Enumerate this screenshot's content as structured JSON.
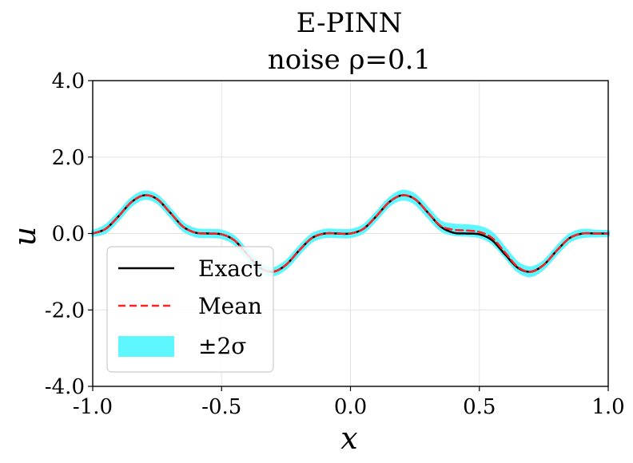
{
  "chart_data": {
    "type": "line",
    "title": "E-PINN",
    "subtitle": "noise ρ=0.1",
    "xlabel": "x",
    "ylabel": "u",
    "xlim": [
      -1.0,
      1.0
    ],
    "ylim": [
      -4.0,
      4.0
    ],
    "grid": true,
    "legend_position": "lower-left",
    "x_ticks": [
      -1.0,
      -0.5,
      0.0,
      0.5,
      1.0
    ],
    "x_tick_labels": [
      "-1.0",
      "-0.5",
      "0.0",
      "0.5",
      "1.0"
    ],
    "y_ticks": [
      -4.0,
      -2.0,
      0.0,
      2.0,
      4.0
    ],
    "y_tick_labels": [
      "-4.0",
      "-2.0",
      "0.0",
      "2.0",
      "4.0"
    ],
    "x": [
      -1.0,
      -0.95,
      -0.9,
      -0.85,
      -0.8,
      -0.75,
      -0.7,
      -0.65,
      -0.6,
      -0.55,
      -0.5,
      -0.45,
      -0.4,
      -0.35,
      -0.3,
      -0.25,
      -0.2,
      -0.15,
      -0.1,
      -0.05,
      0.0,
      0.05,
      0.1,
      0.15,
      0.2,
      0.25,
      0.3,
      0.35,
      0.4,
      0.45,
      0.5,
      0.55,
      0.6,
      0.65,
      0.7,
      0.75,
      0.8,
      0.85,
      0.9,
      0.95,
      1.0
    ],
    "series": [
      {
        "name": "Exact",
        "color": "#000000",
        "style": "solid",
        "values": [
          0.0,
          0.12,
          0.45,
          0.82,
          1.0,
          0.9,
          0.55,
          0.18,
          0.02,
          0.0,
          -0.02,
          -0.18,
          -0.55,
          -0.9,
          -1.0,
          -0.82,
          -0.45,
          -0.12,
          0.0,
          0.0,
          0.0,
          0.12,
          0.45,
          0.82,
          1.0,
          0.9,
          0.55,
          0.18,
          0.02,
          0.0,
          -0.02,
          -0.18,
          -0.55,
          -0.9,
          -1.0,
          -0.82,
          -0.45,
          -0.12,
          0.0,
          0.0,
          0.0
        ]
      },
      {
        "name": "Mean",
        "color": "#ff2020",
        "style": "dashed",
        "values": [
          0.0,
          0.12,
          0.45,
          0.82,
          1.0,
          0.9,
          0.55,
          0.18,
          0.02,
          0.0,
          -0.02,
          -0.18,
          -0.55,
          -0.9,
          -1.0,
          -0.82,
          -0.45,
          -0.12,
          0.0,
          0.0,
          0.0,
          0.12,
          0.45,
          0.82,
          1.0,
          0.9,
          0.55,
          0.2,
          0.1,
          0.08,
          0.04,
          -0.12,
          -0.5,
          -0.88,
          -1.0,
          -0.82,
          -0.45,
          -0.12,
          0.0,
          0.0,
          0.0
        ]
      }
    ],
    "band": {
      "name": "±2σ",
      "color": "#5ef7ff",
      "half_width": [
        0.05,
        0.08,
        0.08,
        0.08,
        0.08,
        0.08,
        0.08,
        0.08,
        0.08,
        0.08,
        0.08,
        0.08,
        0.08,
        0.08,
        0.08,
        0.08,
        0.08,
        0.08,
        0.08,
        0.08,
        0.08,
        0.08,
        0.08,
        0.08,
        0.1,
        0.1,
        0.1,
        0.1,
        0.12,
        0.12,
        0.12,
        0.12,
        0.1,
        0.1,
        0.1,
        0.08,
        0.08,
        0.08,
        0.08,
        0.06,
        0.05
      ]
    }
  }
}
